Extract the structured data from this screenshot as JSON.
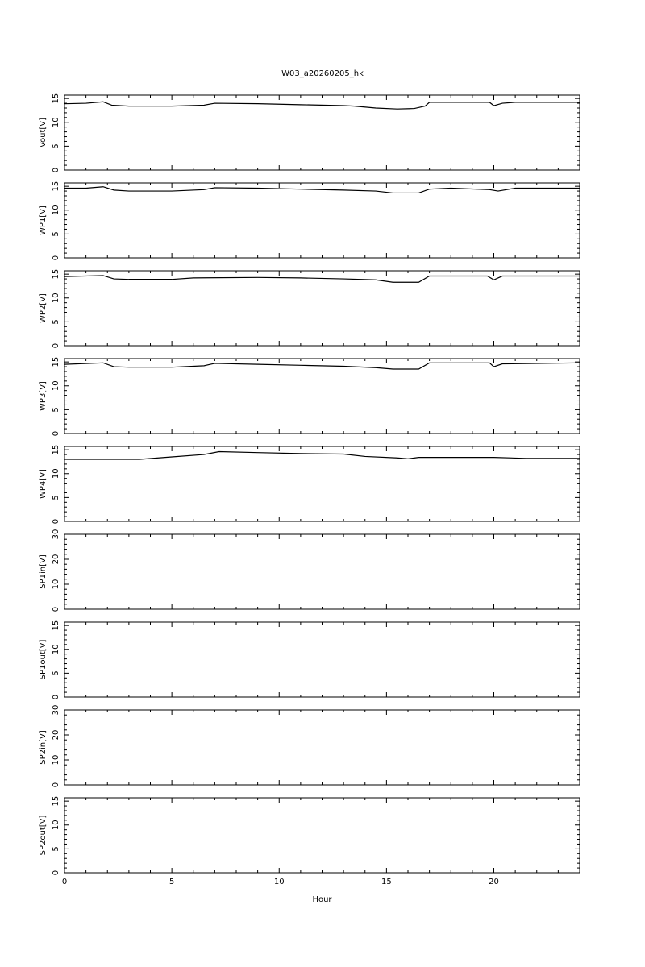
{
  "chart_data": {
    "type": "line",
    "title": "W03_a20260205_hk",
    "xlabel": "Hour",
    "xlim": [
      0,
      24
    ],
    "x_ticks": [
      0,
      5,
      10,
      15,
      20
    ],
    "grid": false,
    "line_color": "#000000",
    "panels": [
      {
        "ylabel": "Vout[V]",
        "ylim": [
          0,
          15.7
        ],
        "y_ticks": [
          0,
          5,
          10,
          15
        ],
        "points": [
          [
            0,
            13.9
          ],
          [
            1,
            14.0
          ],
          [
            1.8,
            14.3
          ],
          [
            2.2,
            13.6
          ],
          [
            3,
            13.4
          ],
          [
            5,
            13.4
          ],
          [
            6.5,
            13.6
          ],
          [
            7,
            14.0
          ],
          [
            9,
            13.9
          ],
          [
            11,
            13.7
          ],
          [
            13,
            13.5
          ],
          [
            13.5,
            13.4
          ],
          [
            14.5,
            13.0
          ],
          [
            15.5,
            12.8
          ],
          [
            16.3,
            12.9
          ],
          [
            16.8,
            13.4
          ],
          [
            17,
            14.2
          ],
          [
            19.8,
            14.2
          ],
          [
            20,
            13.5
          ],
          [
            20.4,
            14.0
          ],
          [
            21,
            14.2
          ],
          [
            24,
            14.2
          ]
        ]
      },
      {
        "ylabel": "WP1[V]",
        "ylim": [
          0,
          15.7
        ],
        "y_ticks": [
          0,
          5,
          10,
          15
        ],
        "points": [
          [
            0,
            14.6
          ],
          [
            1,
            14.6
          ],
          [
            1.8,
            14.9
          ],
          [
            2.3,
            14.2
          ],
          [
            3,
            14.0
          ],
          [
            5,
            14.0
          ],
          [
            6.5,
            14.3
          ],
          [
            7,
            14.7
          ],
          [
            9,
            14.6
          ],
          [
            11,
            14.4
          ],
          [
            13,
            14.2
          ],
          [
            14.5,
            14.0
          ],
          [
            15.3,
            13.6
          ],
          [
            16.5,
            13.6
          ],
          [
            17,
            14.4
          ],
          [
            18,
            14.6
          ],
          [
            19.8,
            14.3
          ],
          [
            20.2,
            14.0
          ],
          [
            21,
            14.6
          ],
          [
            24,
            14.6
          ]
        ]
      },
      {
        "ylabel": "WP2[V]",
        "ylim": [
          0,
          15.7
        ],
        "y_ticks": [
          0,
          5,
          10,
          15
        ],
        "points": [
          [
            0,
            14.5
          ],
          [
            1.8,
            14.7
          ],
          [
            2.3,
            14.0
          ],
          [
            3,
            13.9
          ],
          [
            5,
            13.9
          ],
          [
            6,
            14.2
          ],
          [
            9,
            14.3
          ],
          [
            11,
            14.2
          ],
          [
            13,
            14.0
          ],
          [
            14.5,
            13.8
          ],
          [
            15.3,
            13.3
          ],
          [
            16.5,
            13.3
          ],
          [
            17,
            14.6
          ],
          [
            19.7,
            14.6
          ],
          [
            20,
            13.8
          ],
          [
            20.4,
            14.6
          ],
          [
            24,
            14.6
          ]
        ]
      },
      {
        "ylabel": "WP3[V]",
        "ylim": [
          0,
          15.7
        ],
        "y_ticks": [
          0,
          5,
          10,
          15
        ],
        "points": [
          [
            0,
            14.5
          ],
          [
            1.8,
            14.8
          ],
          [
            2.3,
            14.0
          ],
          [
            3,
            13.9
          ],
          [
            5,
            13.9
          ],
          [
            6.5,
            14.2
          ],
          [
            7,
            14.7
          ],
          [
            9,
            14.5
          ],
          [
            11,
            14.3
          ],
          [
            13,
            14.1
          ],
          [
            14.5,
            13.8
          ],
          [
            15.3,
            13.5
          ],
          [
            16.5,
            13.5
          ],
          [
            17,
            14.8
          ],
          [
            19.8,
            14.8
          ],
          [
            20,
            14.0
          ],
          [
            20.4,
            14.6
          ],
          [
            24,
            14.8
          ]
        ]
      },
      {
        "ylabel": "WP4[V]",
        "ylim": [
          0,
          15.7
        ],
        "y_ticks": [
          0,
          5,
          10,
          15
        ],
        "points": [
          [
            0,
            13.0
          ],
          [
            3.5,
            13.0
          ],
          [
            5,
            13.5
          ],
          [
            6.5,
            14.0
          ],
          [
            7.2,
            14.6
          ],
          [
            9,
            14.4
          ],
          [
            11,
            14.2
          ],
          [
            13,
            14.1
          ],
          [
            14,
            13.6
          ],
          [
            15.5,
            13.3
          ],
          [
            16,
            13.1
          ],
          [
            16.5,
            13.4
          ],
          [
            20,
            13.4
          ],
          [
            21.5,
            13.2
          ],
          [
            24,
            13.2
          ]
        ]
      },
      {
        "ylabel": "SP1in[V]",
        "ylim": [
          0,
          30
        ],
        "y_ticks": [
          0,
          10,
          20,
          30
        ],
        "points": []
      },
      {
        "ylabel": "SP1out[V]",
        "ylim": [
          0,
          15.7
        ],
        "y_ticks": [
          0,
          5,
          10,
          15
        ],
        "points": []
      },
      {
        "ylabel": "SP2in[V]",
        "ylim": [
          0,
          30
        ],
        "y_ticks": [
          0,
          10,
          20,
          30
        ],
        "points": []
      },
      {
        "ylabel": "SP2out[V]",
        "ylim": [
          0,
          15.7
        ],
        "y_ticks": [
          0,
          5,
          10,
          15
        ],
        "points": []
      }
    ]
  }
}
